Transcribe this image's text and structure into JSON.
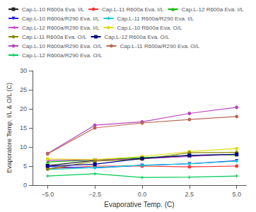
{
  "chart_data": {
    "type": "line",
    "x": [
      -5.0,
      -2.5,
      0.0,
      2.5,
      5.0
    ],
    "series": [
      {
        "name": "Cap.L-10 R600a Eva. I/L",
        "color": "#222222",
        "marker": "square",
        "line_style": "solid",
        "values": [
          5.1,
          6.5,
          7.0,
          7.8,
          8.0
        ]
      },
      {
        "name": "Cap.L-11 R600a Eva. I/L",
        "color": "#ff3333",
        "marker": "circle",
        "line_style": "solid",
        "values": [
          4.3,
          5.0,
          5.0,
          4.8,
          5.0
        ]
      },
      {
        "name": "Cap.L-12 R600a Eva. I/L",
        "color": "#00bb00",
        "marker": "triangle-up",
        "line_style": "solid",
        "values": [
          6.1,
          6.6,
          7.2,
          7.7,
          8.0
        ]
      },
      {
        "name": "Cap.L-10 R600a/R290 Eva. I/L",
        "color": "#2222ff",
        "marker": "triangle-down",
        "line_style": "solid",
        "values": [
          4.9,
          4.5,
          5.2,
          5.6,
          6.4
        ]
      },
      {
        "name": "Cap.L-11 R600a/R290 Eva. I/L",
        "color": "#00cccc",
        "marker": "diamond",
        "line_style": "solid",
        "values": [
          4.1,
          4.6,
          5.2,
          5.6,
          6.3
        ]
      },
      {
        "name": "Cap.L-12 R600a/R290 Eva. I/L",
        "color": "#cc44cc",
        "marker": "triangle-left",
        "line_style": "solid",
        "values": [
          6.5,
          6.6,
          6.9,
          7.5,
          8.1
        ]
      },
      {
        "name": "Cap.L-10 R600a Eva. O/L",
        "color": "#dddd00",
        "marker": "circle",
        "line_style": "solid",
        "values": [
          6.9,
          6.7,
          7.5,
          8.8,
          9.6
        ]
      },
      {
        "name": "Cap.L-11 R600a Eva. O/L",
        "color": "#888800",
        "marker": "circle",
        "line_style": "solid",
        "values": [
          4.2,
          6.3,
          6.8,
          8.5,
          8.6
        ]
      },
      {
        "name": "Cap.L-12 R600a Eva. O/L",
        "color": "#000088",
        "marker": "square",
        "line_style": "solid",
        "values": [
          5.0,
          5.5,
          7.0,
          7.8,
          8.1
        ]
      },
      {
        "name": "Cap.L-10 R600a/R290 Eva. O/L",
        "color": "#bb44bb",
        "marker": "circle",
        "line_style": "solid",
        "values": [
          8.3,
          15.7,
          16.6,
          18.8,
          20.4
        ]
      },
      {
        "name": "Cap.L-11 R600a/R290 Eva. O/L",
        "color": "#bb6655",
        "marker": "circle",
        "line_style": "solid",
        "values": [
          8.2,
          15.0,
          16.3,
          17.2,
          18.0
        ]
      },
      {
        "name": "Cap.L-12 R600a/R290 Eva. O/L",
        "color": "#00cc55",
        "marker": "plus",
        "line_style": "solid",
        "values": [
          2.4,
          3.0,
          2.0,
          2.1,
          2.4
        ]
      }
    ],
    "x_label": "Evaporative Temp. (C)",
    "y_label": "Evaporatore Temp. I/L & O/L (C)",
    "xlim": [
      -5.8,
      5.5
    ],
    "ylim": [
      0,
      30
    ],
    "xticks": [
      {
        "value": -5.0,
        "label": "−5.0"
      },
      {
        "value": -2.5,
        "label": "−2.5"
      },
      {
        "value": 0.0,
        "label": "0.0"
      },
      {
        "value": 2.5,
        "label": "2.5"
      },
      {
        "value": 5.0,
        "label": "5.0"
      }
    ],
    "yticks": [
      0,
      5,
      10,
      15,
      20,
      25,
      30
    ],
    "grid": false,
    "legend": "upper left"
  }
}
